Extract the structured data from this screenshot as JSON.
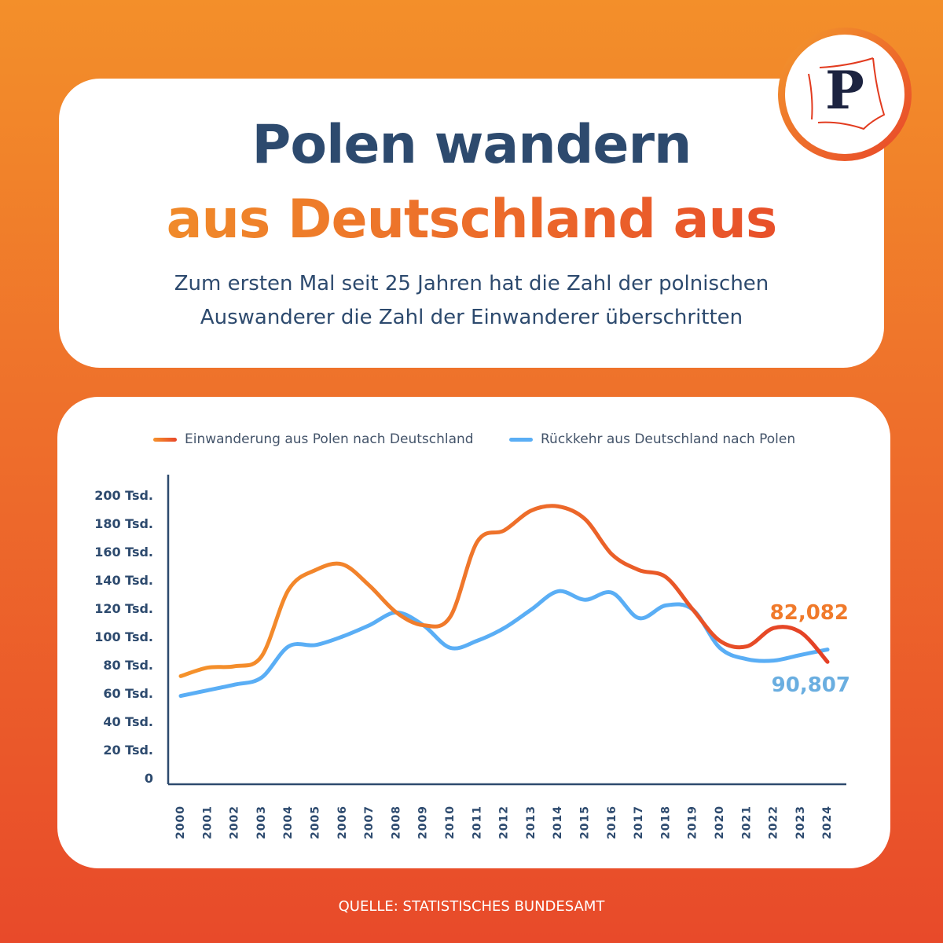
{
  "header": {
    "title_line1": "Polen wandern",
    "title_line2": "aus Deutschland aus",
    "subtitle_line1": "Zum ersten Mal seit 25 Jahren hat die Zahl der polnischen",
    "subtitle_line2": "Auswanderer die Zahl der Einwanderer überschritten",
    "logo_letter": "P"
  },
  "source": "QUELLE: STATISTISCHES BUNDESAMT",
  "colors": {
    "orange": "#f5922b",
    "red": "#e8472a",
    "blue": "#5aaef5",
    "navy": "#2d4a6e"
  },
  "chart_data": {
    "type": "line",
    "title": "",
    "xlabel": "",
    "ylabel": "",
    "ylim": [
      0,
      200
    ],
    "y_ticks": [
      0,
      20,
      40,
      60,
      80,
      100,
      120,
      140,
      160,
      180,
      200
    ],
    "y_tick_labels": [
      "0",
      "20 Tsd.",
      "40 Tsd.",
      "60 Tsd.",
      "80 Tsd.",
      "100 Tsd.",
      "120 Tsd.",
      "140 Tsd.",
      "160 Tsd.",
      "180 Tsd.",
      "200 Tsd."
    ],
    "x": [
      "2000",
      "2001",
      "2002",
      "2003",
      "2004",
      "2005",
      "2006",
      "2007",
      "2008",
      "2009",
      "2010",
      "2011",
      "2012",
      "2013",
      "2014",
      "2015",
      "2016",
      "2017",
      "2018",
      "2019",
      "2020",
      "2021",
      "2022",
      "2023",
      "2024"
    ],
    "legend_position": "top",
    "series": [
      {
        "name": "Einwanderung aus Polen nach Deutschland",
        "unit": "Tsd.",
        "values": [
          72,
          78,
          79,
          86,
          133,
          147,
          151,
          136,
          117,
          108,
          114,
          167,
          175,
          189,
          192,
          183,
          158,
          147,
          142,
          119,
          97,
          93,
          106,
          103,
          82.1
        ],
        "end_label": "82,082"
      },
      {
        "name": "Rückkehr aus Deutschland nach Polen",
        "unit": "Tsd.",
        "values": [
          58,
          62,
          66,
          71,
          93,
          94,
          100,
          108,
          117,
          108,
          92,
          97,
          106,
          119,
          132,
          126,
          131,
          113,
          122,
          119,
          92,
          84,
          83,
          87,
          90.8
        ],
        "end_label": "90,807"
      }
    ]
  }
}
